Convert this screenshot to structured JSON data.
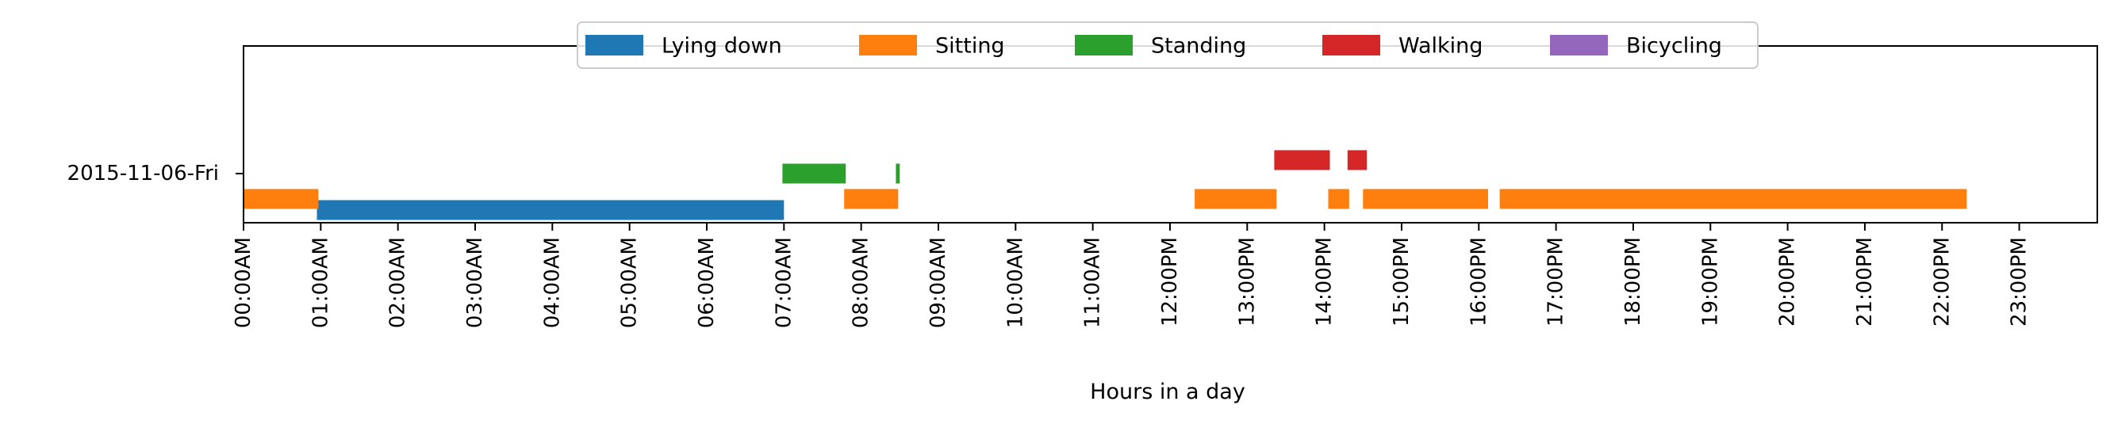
{
  "chart_data": {
    "type": "timeline",
    "xlabel": "Hours in a day",
    "x_unit": "hour",
    "xlim": [
      0,
      24
    ],
    "row_label": "2015-11-06-Fri",
    "xtick_labels": [
      "00:00AM",
      "01:00AM",
      "02:00AM",
      "03:00AM",
      "04:00AM",
      "05:00AM",
      "06:00AM",
      "07:00AM",
      "08:00AM",
      "09:00AM",
      "10:00AM",
      "11:00AM",
      "12:00PM",
      "13:00PM",
      "14:00PM",
      "15:00PM",
      "16:00PM",
      "17:00PM",
      "18:00PM",
      "19:00PM",
      "20:00PM",
      "21:00PM",
      "22:00PM",
      "23:00PM"
    ],
    "legend_position": "top-center",
    "grid": false,
    "series": [
      {
        "name": "Lying down",
        "color": "#1f77b4",
        "level": 0,
        "intervals": [
          [
            0.95,
            7.0
          ]
        ]
      },
      {
        "name": "Sitting",
        "color": "#ff7f0e",
        "level": 1,
        "intervals": [
          [
            0.0,
            0.97
          ],
          [
            7.78,
            8.48
          ],
          [
            12.32,
            13.38
          ],
          [
            14.05,
            14.32
          ],
          [
            14.5,
            16.12
          ],
          [
            16.27,
            22.32
          ]
        ]
      },
      {
        "name": "Standing",
        "color": "#2ca02c",
        "level": 2,
        "intervals": [
          [
            6.98,
            7.8
          ],
          [
            8.45,
            8.5
          ]
        ]
      },
      {
        "name": "Walking",
        "color": "#d62728",
        "level": 3,
        "intervals": [
          [
            13.35,
            14.07
          ],
          [
            14.3,
            14.55
          ]
        ]
      },
      {
        "name": "Bicycling",
        "color": "#9467bd",
        "level": 4,
        "intervals": []
      }
    ]
  }
}
